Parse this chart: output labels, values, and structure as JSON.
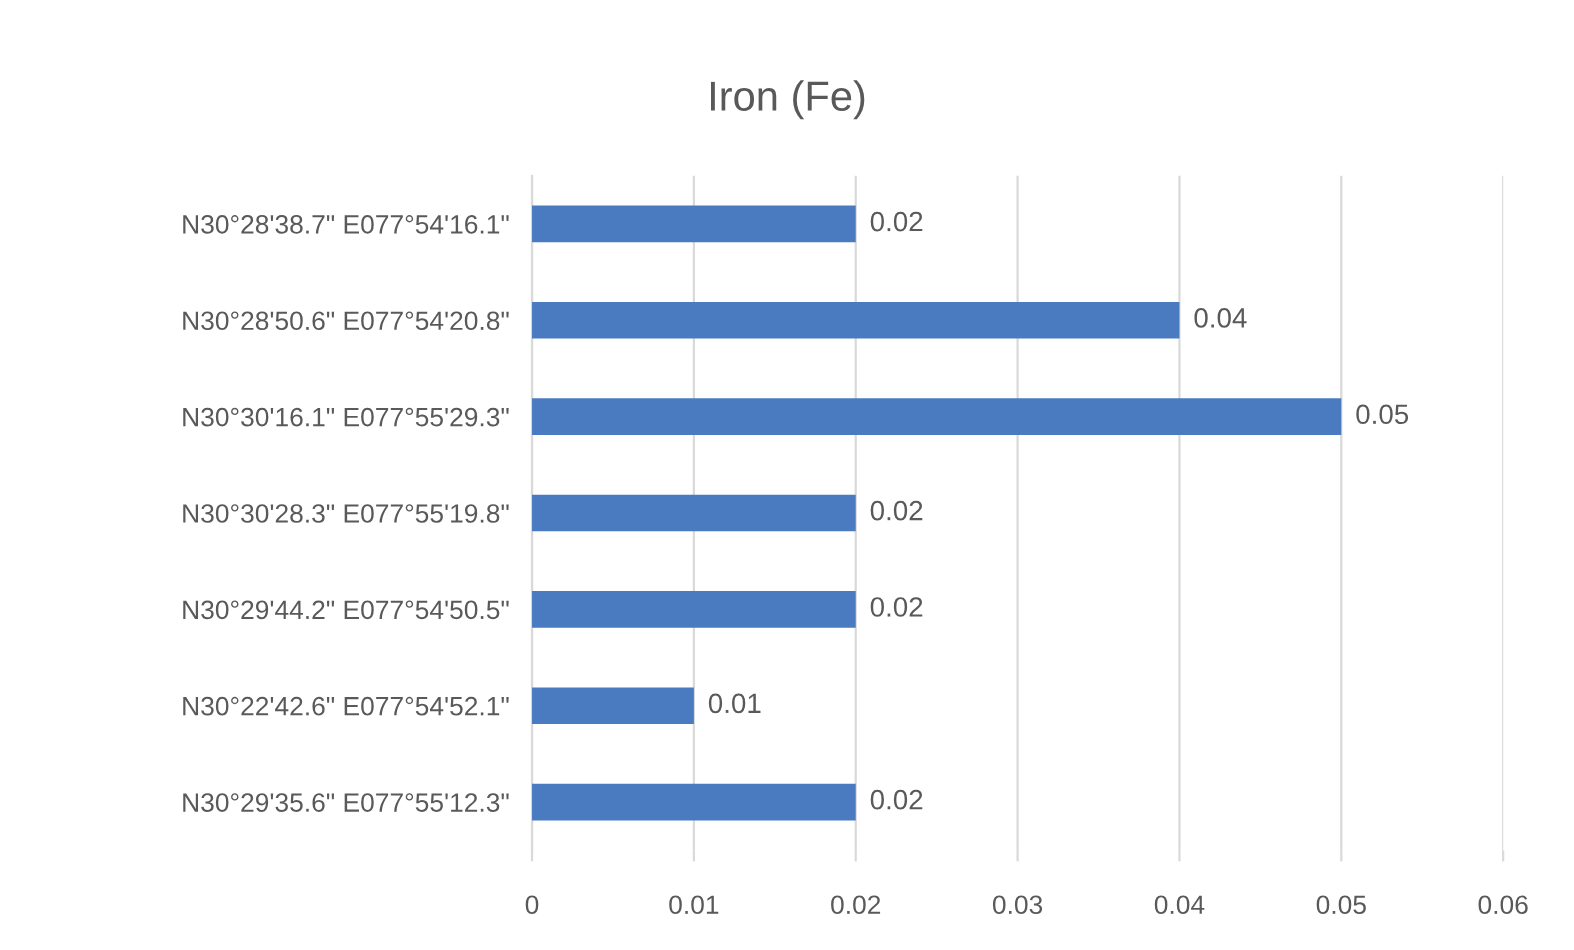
{
  "chart_data": {
    "type": "bar",
    "orientation": "horizontal",
    "title": "Iron (Fe)",
    "categories": [
      "N30°28'38.7\" E077°54'16.1\"",
      "N30°28'50.6\" E077°54'20.8\"",
      "N30°30'16.1\" E077°55'29.3\"",
      "N30°30'28.3\" E077°55'19.8\"",
      "N30°29'44.2\" E077°54'50.5\"",
      "N30°22'42.6\" E077°54'52.1\"",
      "N30°29'35.6\" E077°55'12.3\""
    ],
    "values": [
      0.02,
      0.04,
      0.05,
      0.02,
      0.02,
      0.01,
      0.02
    ],
    "color": "#4a7bc0",
    "xlim": [
      0,
      0.06
    ],
    "xticks": [
      0,
      0.01,
      0.02,
      0.03,
      0.04,
      0.05,
      0.06
    ],
    "grid": "x",
    "data_labels": true
  }
}
